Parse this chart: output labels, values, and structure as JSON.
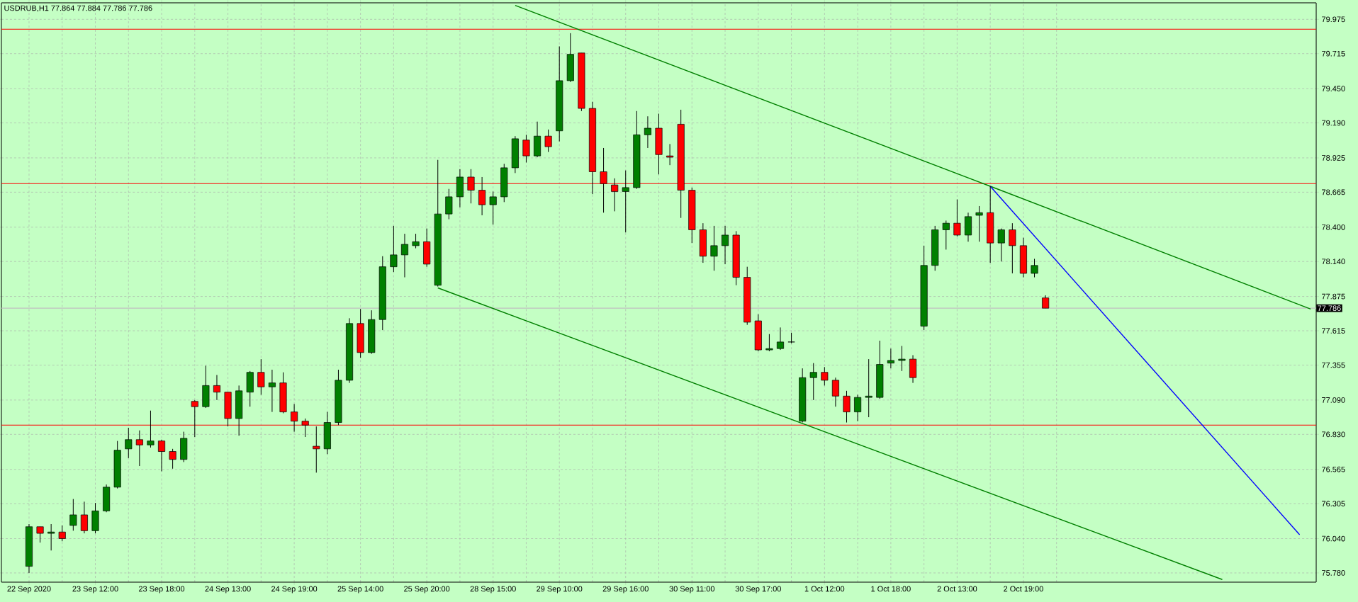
{
  "chart_data": {
    "type": "candlestick",
    "title": "USDRUB,H1  77.864 77.884 77.786 77.786",
    "categories": [
      "22 Sep 2020",
      null,
      null,
      null,
      null,
      null,
      "23 Sep 12:00",
      null,
      null,
      null,
      null,
      null,
      "23 Sep 18:00",
      null,
      null,
      null,
      null,
      null,
      "24 Sep 13:00",
      null,
      null,
      null,
      null,
      null,
      "24 Sep 19:00",
      null,
      null,
      null,
      null,
      null,
      "25 Sep 14:00",
      null,
      null,
      null,
      null,
      null,
      "25 Sep 20:00",
      null,
      null,
      null,
      null,
      null,
      "28 Sep 15:00",
      null,
      null,
      null,
      null,
      null,
      "29 Sep 10:00",
      null,
      null,
      null,
      null,
      null,
      "29 Sep 16:00",
      null,
      null,
      null,
      null,
      null,
      "30 Sep 11:00",
      null,
      null,
      null,
      null,
      null,
      "30 Sep 17:00",
      null,
      null,
      null,
      null,
      null,
      "1 Oct 12:00",
      null,
      null,
      null,
      null,
      null,
      "1 Oct 18:00",
      null,
      null,
      null,
      null,
      null,
      "2 Oct 13:00",
      null,
      null,
      null,
      null,
      null,
      "2 Oct 19:00",
      null,
      null,
      null,
      null,
      null,
      null,
      null,
      null,
      null,
      null,
      null,
      null,
      null,
      null,
      null,
      null,
      null,
      null,
      null,
      null,
      null,
      null,
      null,
      null,
      null,
      null
    ],
    "ohlc": [
      [
        75.83,
        76.15,
        75.78,
        76.13
      ],
      [
        76.13,
        76.13,
        76.01,
        76.08
      ],
      [
        76.08,
        76.15,
        75.95,
        76.09
      ],
      [
        76.09,
        76.14,
        76.02,
        76.04
      ],
      [
        76.14,
        76.34,
        76.1,
        76.22
      ],
      [
        76.22,
        76.32,
        76.08,
        76.1
      ],
      [
        76.1,
        76.31,
        76.08,
        76.25
      ],
      [
        76.25,
        76.45,
        76.24,
        76.43
      ],
      [
        76.43,
        76.78,
        76.42,
        76.71
      ],
      [
        76.72,
        76.88,
        76.65,
        76.79
      ],
      [
        76.79,
        76.86,
        76.59,
        76.75
      ],
      [
        76.75,
        77.01,
        76.73,
        76.78
      ],
      [
        76.78,
        76.79,
        76.55,
        76.7
      ],
      [
        76.7,
        76.72,
        76.57,
        76.64
      ],
      [
        76.64,
        76.85,
        76.62,
        76.8
      ],
      [
        77.08,
        77.09,
        76.81,
        77.04
      ],
      [
        77.04,
        77.35,
        77.03,
        77.2
      ],
      [
        77.2,
        77.28,
        77.09,
        77.15
      ],
      [
        77.15,
        77.15,
        76.89,
        76.95
      ],
      [
        76.95,
        77.2,
        76.82,
        77.16
      ],
      [
        77.15,
        77.31,
        77.04,
        77.3
      ],
      [
        77.3,
        77.4,
        77.13,
        77.19
      ],
      [
        77.19,
        77.32,
        77.0,
        77.22
      ],
      [
        77.22,
        77.3,
        76.99,
        77.0
      ],
      [
        77.0,
        77.06,
        76.85,
        76.93
      ],
      [
        76.93,
        76.95,
        76.81,
        76.9
      ],
      [
        76.74,
        76.89,
        76.54,
        76.72
      ],
      [
        76.72,
        77.0,
        76.68,
        76.92
      ],
      [
        76.92,
        77.32,
        76.9,
        77.24
      ],
      [
        77.24,
        77.71,
        77.22,
        77.67
      ],
      [
        77.67,
        77.78,
        77.41,
        77.45
      ],
      [
        77.45,
        77.77,
        77.44,
        77.7
      ],
      [
        77.7,
        78.18,
        77.62,
        78.1
      ],
      [
        78.1,
        78.41,
        78.06,
        78.19
      ],
      [
        78.19,
        78.35,
        78.02,
        78.27
      ],
      [
        78.26,
        78.35,
        78.24,
        78.29
      ],
      [
        78.29,
        78.39,
        78.1,
        78.12
      ],
      [
        77.96,
        78.91,
        77.95,
        78.5
      ],
      [
        78.5,
        78.69,
        78.46,
        78.63
      ],
      [
        78.63,
        78.84,
        78.55,
        78.78
      ],
      [
        78.78,
        78.84,
        78.58,
        78.68
      ],
      [
        78.68,
        78.78,
        78.49,
        78.57
      ],
      [
        78.57,
        78.67,
        78.42,
        78.63
      ],
      [
        78.63,
        78.88,
        78.59,
        78.85
      ],
      [
        78.85,
        79.09,
        78.81,
        79.07
      ],
      [
        79.06,
        79.1,
        78.89,
        78.94
      ],
      [
        78.94,
        79.2,
        78.93,
        79.09
      ],
      [
        79.09,
        79.14,
        78.97,
        79.01
      ],
      [
        79.13,
        79.77,
        79.05,
        79.51
      ],
      [
        79.51,
        79.87,
        79.5,
        79.71
      ],
      [
        79.72,
        79.72,
        79.28,
        79.3
      ],
      [
        79.3,
        79.35,
        78.65,
        78.82
      ],
      [
        78.82,
        79.0,
        78.51,
        78.73
      ],
      [
        78.72,
        78.77,
        78.52,
        78.67
      ],
      [
        78.67,
        78.83,
        78.36,
        78.7
      ],
      [
        78.7,
        79.28,
        78.69,
        79.1
      ],
      [
        79.1,
        79.24,
        79.0,
        79.15
      ],
      [
        79.15,
        79.26,
        78.8,
        78.95
      ],
      [
        78.94,
        79.03,
        78.87,
        78.93
      ],
      [
        79.18,
        79.29,
        78.47,
        78.68
      ],
      [
        78.68,
        78.7,
        78.28,
        78.38
      ],
      [
        78.38,
        78.43,
        78.13,
        78.18
      ],
      [
        78.18,
        78.41,
        78.07,
        78.26
      ],
      [
        78.26,
        78.41,
        78.12,
        78.34
      ],
      [
        78.34,
        78.37,
        77.96,
        78.02
      ],
      [
        78.02,
        78.1,
        77.66,
        77.68
      ],
      [
        77.69,
        77.74,
        77.46,
        77.47
      ],
      [
        77.47,
        77.59,
        77.46,
        77.48
      ],
      [
        77.48,
        77.64,
        77.47,
        77.53
      ],
      [
        77.53,
        77.6,
        77.52,
        77.53
      ],
      [
        76.93,
        77.33,
        76.92,
        77.26
      ],
      [
        77.26,
        77.37,
        77.09,
        77.3
      ],
      [
        77.3,
        77.34,
        77.2,
        77.24
      ],
      [
        77.24,
        77.26,
        77.04,
        77.12
      ],
      [
        77.12,
        77.16,
        76.92,
        77.0
      ],
      [
        77.0,
        77.13,
        76.93,
        77.11
      ],
      [
        77.11,
        77.4,
        76.96,
        77.12
      ],
      [
        77.11,
        77.54,
        77.1,
        77.36
      ],
      [
        77.37,
        77.48,
        77.33,
        77.39
      ],
      [
        77.39,
        77.5,
        77.31,
        77.4
      ],
      [
        77.4,
        77.43,
        77.22,
        77.26
      ],
      [
        77.65,
        78.26,
        77.62,
        78.11
      ],
      [
        78.11,
        78.41,
        78.07,
        78.38
      ],
      [
        78.38,
        78.45,
        78.23,
        78.43
      ],
      [
        78.43,
        78.61,
        78.33,
        78.34
      ],
      [
        78.34,
        78.51,
        78.29,
        78.48
      ],
      [
        78.49,
        78.56,
        78.29,
        78.51
      ],
      [
        78.51,
        78.71,
        78.13,
        78.28
      ],
      [
        78.28,
        78.39,
        78.14,
        78.38
      ],
      [
        78.38,
        78.43,
        78.05,
        78.26
      ],
      [
        78.26,
        78.32,
        78.02,
        78.05
      ],
      [
        78.05,
        78.16,
        78.02,
        78.11
      ],
      [
        77.864,
        77.884,
        77.786,
        77.786
      ],
      null,
      null,
      null,
      null,
      null,
      null,
      null,
      null,
      null,
      null,
      null,
      null,
      null,
      null,
      null,
      null,
      null,
      null,
      null,
      null,
      null,
      null,
      null,
      null
    ],
    "series": [
      {
        "type": "line",
        "color": "#008000",
        "values": [
          null,
          null,
          null,
          null,
          null,
          null,
          null,
          null,
          null,
          null,
          null,
          null,
          null,
          null,
          null,
          null,
          null,
          null,
          null,
          null,
          null,
          null,
          null,
          null,
          null,
          null,
          null,
          null,
          null,
          null,
          null,
          null,
          null,
          null,
          null,
          null,
          null,
          null,
          null,
          null,
          null,
          null,
          null,
          null,
          80.08,
          null,
          null,
          null,
          null,
          null,
          null,
          null,
          null,
          null,
          null,
          null,
          null,
          null,
          null,
          null,
          null,
          null,
          null,
          null,
          null,
          null,
          null,
          null,
          null,
          null,
          null,
          null,
          null,
          null,
          null,
          null,
          null,
          null,
          null,
          null,
          null,
          null,
          null,
          null,
          null,
          null,
          null,
          78.71,
          null,
          null,
          null,
          null,
          null,
          null,
          null,
          null,
          null,
          null,
          null,
          null,
          null,
          null,
          null,
          null,
          null,
          null,
          null,
          null,
          null,
          null,
          null,
          null,
          null,
          null,
          null,
          null,
          77.78
        ]
      },
      {
        "type": "line",
        "color": "#008000",
        "values": [
          null,
          null,
          null,
          null,
          null,
          null,
          null,
          null,
          null,
          null,
          null,
          null,
          null,
          null,
          null,
          null,
          null,
          null,
          null,
          null,
          null,
          null,
          null,
          null,
          null,
          null,
          null,
          null,
          null,
          null,
          null,
          null,
          null,
          null,
          null,
          null,
          null,
          77.94,
          null,
          null,
          null,
          null,
          null,
          null,
          null,
          null,
          null,
          null,
          null,
          null,
          null,
          null,
          null,
          null,
          null,
          null,
          null,
          null,
          null,
          null,
          null,
          null,
          null,
          null,
          null,
          null,
          null,
          null,
          null,
          null,
          null,
          null,
          null,
          null,
          null,
          null,
          null,
          null,
          null,
          null,
          null,
          null,
          null,
          null,
          null,
          null,
          null,
          null,
          null,
          null,
          null,
          null,
          null,
          null,
          null,
          null,
          null,
          null,
          null,
          null,
          null,
          null,
          null,
          null,
          null,
          null,
          null,
          null,
          75.73,
          null,
          null,
          null,
          null,
          null,
          null,
          null,
          null
        ]
      },
      {
        "type": "line",
        "color": "#0000ff",
        "values": [
          null,
          null,
          null,
          null,
          null,
          null,
          null,
          null,
          null,
          null,
          null,
          null,
          null,
          null,
          null,
          null,
          null,
          null,
          null,
          null,
          null,
          null,
          null,
          null,
          null,
          null,
          null,
          null,
          null,
          null,
          null,
          null,
          null,
          null,
          null,
          null,
          null,
          null,
          null,
          null,
          null,
          null,
          null,
          null,
          null,
          null,
          null,
          null,
          null,
          null,
          null,
          null,
          null,
          null,
          null,
          null,
          null,
          null,
          null,
          null,
          null,
          null,
          null,
          null,
          null,
          null,
          null,
          null,
          null,
          null,
          null,
          null,
          null,
          null,
          null,
          null,
          null,
          null,
          null,
          null,
          null,
          null,
          null,
          null,
          null,
          null,
          null,
          78.71,
          null,
          null,
          null,
          null,
          null,
          null,
          null,
          null,
          null,
          null,
          null,
          null,
          null,
          null,
          null,
          null,
          null,
          null,
          null,
          null,
          null,
          null,
          null,
          null,
          null,
          null,
          null,
          76.07,
          null
        ]
      }
    ],
    "ref_lines": [
      {
        "axis": "y",
        "value": 79.9,
        "color": "#ff0000"
      },
      {
        "axis": "y",
        "value": 78.73,
        "color": "#ff0000"
      },
      {
        "axis": "y",
        "value": 76.9,
        "color": "#ff0000"
      },
      {
        "axis": "y",
        "value": 77.786,
        "label": "77.786",
        "color": "#c0c0c0"
      }
    ],
    "ylim": [
      75.71,
      80.1
    ],
    "yticks": [
      79.975,
      79.715,
      {
        "value": 79.45,
        "label": "79.450"
      },
      {
        "value": 79.19,
        "label": "79.190"
      },
      78.925,
      78.665,
      {
        "value": 78.4,
        "label": "78.400"
      },
      {
        "value": 78.14,
        "label": "78.140"
      },
      77.875,
      77.615,
      77.355,
      {
        "value": 77.09,
        "label": "77.090"
      },
      {
        "value": 76.83,
        "label": "76.830"
      },
      76.565,
      76.305,
      {
        "value": 76.04,
        "label": "76.040"
      },
      {
        "value": 75.78,
        "label": "75.780"
      }
    ],
    "grid": true
  }
}
